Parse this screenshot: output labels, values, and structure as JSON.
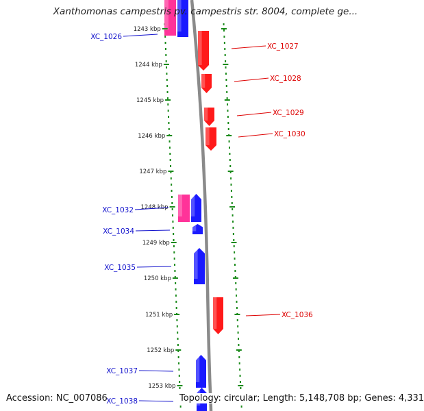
{
  "title": "Xanthomonas campestris pv. campestris str. 8004, complete ge...",
  "footer": {
    "accession_label": "Accession:",
    "accession_value": "NC_007086",
    "topology_text": "Topology: circular; Length: 5,148,708 bp; Genes: 4,331"
  },
  "colors": {
    "forward_gene": "#ff1a1a",
    "reverse_gene": "#1a1aff",
    "pink_feature": "#ff3399",
    "forward_label": "#dd0000",
    "reverse_label": "#1010cc",
    "backbone": "#8a8a8a",
    "track_dots": "#1a8a1a",
    "tick_marks": "#1a8a1a"
  },
  "ticks": [
    "1243 kbp",
    "1244 kbp",
    "1245 kbp",
    "1246 kbp",
    "1247 kbp",
    "1248 kbp",
    "1249 kbp",
    "1250 kbp",
    "1251 kbp",
    "1252 kbp",
    "1253 kbp"
  ],
  "genes": [
    {
      "label": "XC_1026",
      "strand": "reverse"
    },
    {
      "label": "XC_1027",
      "strand": "forward"
    },
    {
      "label": "XC_1028",
      "strand": "forward"
    },
    {
      "label": "XC_1029",
      "strand": "forward"
    },
    {
      "label": "XC_1030",
      "strand": "forward"
    },
    {
      "label": "XC_1032",
      "strand": "reverse"
    },
    {
      "label": "XC_1034",
      "strand": "reverse"
    },
    {
      "label": "XC_1035",
      "strand": "reverse"
    },
    {
      "label": "XC_1036",
      "strand": "forward"
    },
    {
      "label": "XC_1037",
      "strand": "reverse"
    },
    {
      "label": "XC_1038",
      "strand": "reverse"
    }
  ]
}
